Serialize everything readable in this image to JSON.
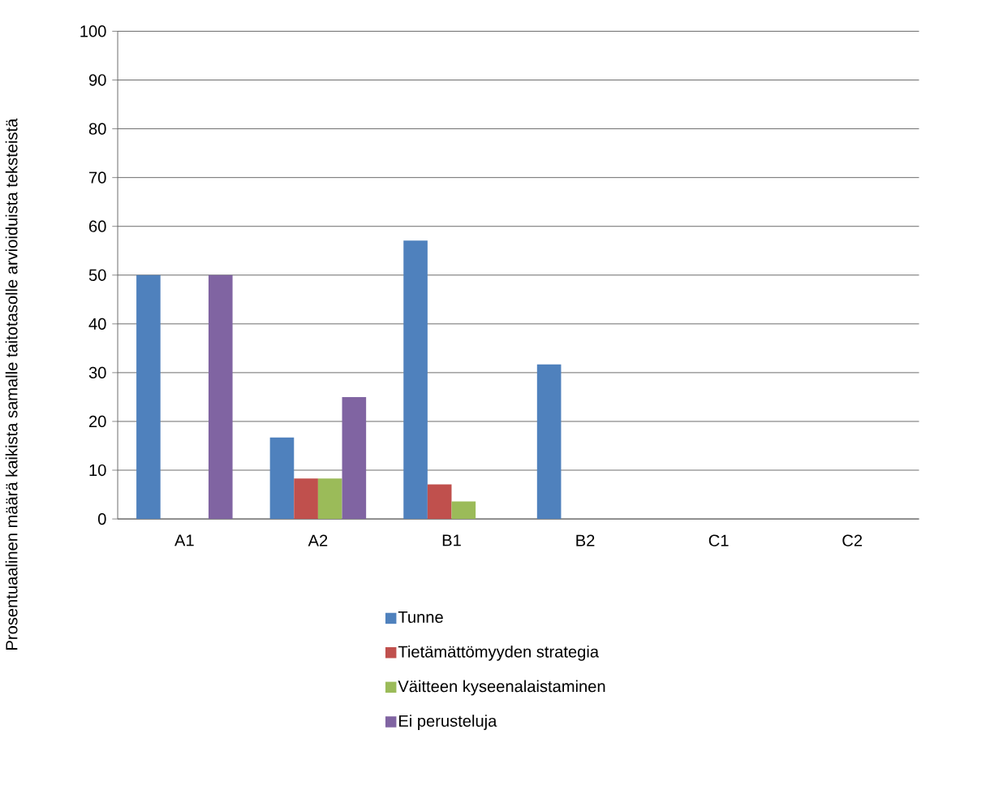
{
  "chart_data": {
    "type": "bar",
    "ylabel": "Prosentuaalinen määrä kaikista samalle taitotasolle arvioiduista teksteistä",
    "categories": [
      "A1",
      "A2",
      "B1",
      "B2",
      "C1",
      "C2"
    ],
    "series": [
      {
        "name": "Tunne",
        "color": "#4f81bd",
        "values": [
          50,
          16.7,
          57.1,
          31.7,
          0,
          0
        ]
      },
      {
        "name": "Tietämättömyyden strategia",
        "color": "#c0504d",
        "values": [
          0,
          8.3,
          7.1,
          0,
          0,
          0
        ]
      },
      {
        "name": "Väitteen kyseenalaistaminen",
        "color": "#9bbb59",
        "values": [
          0,
          8.3,
          3.6,
          0,
          0,
          0
        ]
      },
      {
        "name": "Ei perusteluja",
        "color": "#8064a2",
        "values": [
          50,
          25,
          0,
          0,
          0,
          0
        ]
      }
    ],
    "ylim": [
      0,
      100
    ],
    "yticks": [
      0,
      10,
      20,
      30,
      40,
      50,
      60,
      70,
      80,
      90,
      100
    ],
    "grid": "y",
    "legend": "bottom"
  }
}
